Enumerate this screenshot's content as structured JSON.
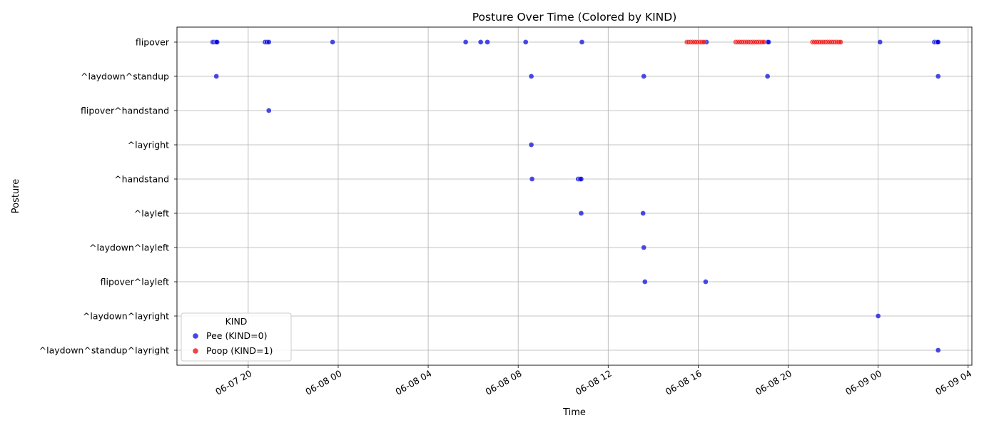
{
  "chart_data": {
    "type": "scatter",
    "title": "Posture Over Time (Colored by KIND)",
    "xlabel": "Time",
    "ylabel": "Posture",
    "grid": true,
    "legend": {
      "title": "KIND",
      "placement": "lower-left",
      "entries": [
        {
          "label": "Pee (KIND=0)",
          "color": "#0000dd"
        },
        {
          "label": "Poop (KIND=1)",
          "color": "#ee1111"
        }
      ]
    },
    "x_ticks": [
      "2024-06-07T20:00",
      "2024-06-08T00:00",
      "2024-06-08T04:00",
      "2024-06-08T08:00",
      "2024-06-08T12:00",
      "2024-06-08T16:00",
      "2024-06-08T20:00",
      "2024-06-09T00:00",
      "2024-06-09T04:00"
    ],
    "x_tick_labels": [
      "06-07 20",
      "06-08 00",
      "06-08 04",
      "06-08 08",
      "06-08 12",
      "06-08 16",
      "06-08 20",
      "06-09 00",
      "06-09 04"
    ],
    "xlim": [
      "2024-06-07T16:50",
      "2024-06-09T04:10"
    ],
    "categories": [
      "flipover",
      "^laydown^standup",
      "flipover^handstand",
      "^layright",
      "^handstand",
      "^layleft",
      "^laydown^layleft",
      "flipover^layleft",
      "^laydown^layright",
      "^laydown^standup^layright"
    ],
    "series": [
      {
        "name": "Pee (KIND=0)",
        "kind": 0,
        "color": "#0000dd",
        "points": [
          {
            "x": "2024-06-07T18:25",
            "y": "flipover"
          },
          {
            "x": "2024-06-07T18:28",
            "y": "flipover"
          },
          {
            "x": "2024-06-07T18:32",
            "y": "flipover"
          },
          {
            "x": "2024-06-07T18:35",
            "y": "flipover"
          },
          {
            "x": "2024-06-07T18:37",
            "y": "flipover"
          },
          {
            "x": "2024-06-07T20:45",
            "y": "flipover"
          },
          {
            "x": "2024-06-07T20:50",
            "y": "flipover"
          },
          {
            "x": "2024-06-07T20:55",
            "y": "flipover"
          },
          {
            "x": "2024-06-07T23:45",
            "y": "flipover"
          },
          {
            "x": "2024-06-08T05:40",
            "y": "flipover"
          },
          {
            "x": "2024-06-08T06:20",
            "y": "flipover"
          },
          {
            "x": "2024-06-08T06:38",
            "y": "flipover"
          },
          {
            "x": "2024-06-08T08:20",
            "y": "flipover"
          },
          {
            "x": "2024-06-08T10:50",
            "y": "flipover"
          },
          {
            "x": "2024-06-08T16:22",
            "y": "flipover"
          },
          {
            "x": "2024-06-08T19:05",
            "y": "flipover"
          },
          {
            "x": "2024-06-08T19:08",
            "y": "flipover"
          },
          {
            "x": "2024-06-09T00:05",
            "y": "flipover"
          },
          {
            "x": "2024-06-09T02:30",
            "y": "flipover"
          },
          {
            "x": "2024-06-09T02:35",
            "y": "flipover"
          },
          {
            "x": "2024-06-09T02:38",
            "y": "flipover"
          },
          {
            "x": "2024-06-09T02:40",
            "y": "flipover"
          },
          {
            "x": "2024-06-07T18:35",
            "y": "^laydown^standup"
          },
          {
            "x": "2024-06-08T08:35",
            "y": "^laydown^standup"
          },
          {
            "x": "2024-06-08T13:35",
            "y": "^laydown^standup"
          },
          {
            "x": "2024-06-08T19:05",
            "y": "^laydown^standup"
          },
          {
            "x": "2024-06-09T02:40",
            "y": "^laydown^standup"
          },
          {
            "x": "2024-06-07T20:55",
            "y": "flipover^handstand"
          },
          {
            "x": "2024-06-08T08:35",
            "y": "^layright"
          },
          {
            "x": "2024-06-08T08:37",
            "y": "^handstand"
          },
          {
            "x": "2024-06-08T10:40",
            "y": "^handstand"
          },
          {
            "x": "2024-06-08T10:45",
            "y": "^handstand"
          },
          {
            "x": "2024-06-08T10:48",
            "y": "^handstand"
          },
          {
            "x": "2024-06-08T10:48",
            "y": "^layleft"
          },
          {
            "x": "2024-06-08T13:33",
            "y": "^layleft"
          },
          {
            "x": "2024-06-08T13:35",
            "y": "^laydown^layleft"
          },
          {
            "x": "2024-06-08T13:38",
            "y": "flipover^layleft"
          },
          {
            "x": "2024-06-08T16:20",
            "y": "flipover^layleft"
          },
          {
            "x": "2024-06-09T00:00",
            "y": "^laydown^layright"
          },
          {
            "x": "2024-06-09T02:40",
            "y": "^laydown^standup^layright"
          }
        ]
      },
      {
        "name": "Poop (KIND=1)",
        "kind": 1,
        "color": "#ee1111",
        "points": [
          {
            "x": "2024-06-08T15:30",
            "y": "flipover"
          },
          {
            "x": "2024-06-08T15:35",
            "y": "flipover"
          },
          {
            "x": "2024-06-08T15:40",
            "y": "flipover"
          },
          {
            "x": "2024-06-08T15:45",
            "y": "flipover"
          },
          {
            "x": "2024-06-08T15:50",
            "y": "flipover"
          },
          {
            "x": "2024-06-08T15:55",
            "y": "flipover"
          },
          {
            "x": "2024-06-08T16:00",
            "y": "flipover"
          },
          {
            "x": "2024-06-08T16:05",
            "y": "flipover"
          },
          {
            "x": "2024-06-08T16:10",
            "y": "flipover"
          },
          {
            "x": "2024-06-08T16:15",
            "y": "flipover"
          },
          {
            "x": "2024-06-08T17:40",
            "y": "flipover"
          },
          {
            "x": "2024-06-08T17:45",
            "y": "flipover"
          },
          {
            "x": "2024-06-08T17:50",
            "y": "flipover"
          },
          {
            "x": "2024-06-08T17:55",
            "y": "flipover"
          },
          {
            "x": "2024-06-08T18:00",
            "y": "flipover"
          },
          {
            "x": "2024-06-08T18:05",
            "y": "flipover"
          },
          {
            "x": "2024-06-08T18:10",
            "y": "flipover"
          },
          {
            "x": "2024-06-08T18:15",
            "y": "flipover"
          },
          {
            "x": "2024-06-08T18:20",
            "y": "flipover"
          },
          {
            "x": "2024-06-08T18:25",
            "y": "flipover"
          },
          {
            "x": "2024-06-08T18:30",
            "y": "flipover"
          },
          {
            "x": "2024-06-08T18:35",
            "y": "flipover"
          },
          {
            "x": "2024-06-08T18:40",
            "y": "flipover"
          },
          {
            "x": "2024-06-08T18:45",
            "y": "flipover"
          },
          {
            "x": "2024-06-08T18:50",
            "y": "flipover"
          },
          {
            "x": "2024-06-08T18:55",
            "y": "flipover"
          },
          {
            "x": "2024-06-08T21:05",
            "y": "flipover"
          },
          {
            "x": "2024-06-08T21:10",
            "y": "flipover"
          },
          {
            "x": "2024-06-08T21:15",
            "y": "flipover"
          },
          {
            "x": "2024-06-08T21:20",
            "y": "flipover"
          },
          {
            "x": "2024-06-08T21:25",
            "y": "flipover"
          },
          {
            "x": "2024-06-08T21:30",
            "y": "flipover"
          },
          {
            "x": "2024-06-08T21:35",
            "y": "flipover"
          },
          {
            "x": "2024-06-08T21:40",
            "y": "flipover"
          },
          {
            "x": "2024-06-08T21:45",
            "y": "flipover"
          },
          {
            "x": "2024-06-08T21:50",
            "y": "flipover"
          },
          {
            "x": "2024-06-08T21:55",
            "y": "flipover"
          },
          {
            "x": "2024-06-08T22:00",
            "y": "flipover"
          },
          {
            "x": "2024-06-08T22:05",
            "y": "flipover"
          },
          {
            "x": "2024-06-08T22:10",
            "y": "flipover"
          },
          {
            "x": "2024-06-08T22:15",
            "y": "flipover"
          },
          {
            "x": "2024-06-08T22:20",
            "y": "flipover"
          }
        ]
      }
    ]
  }
}
